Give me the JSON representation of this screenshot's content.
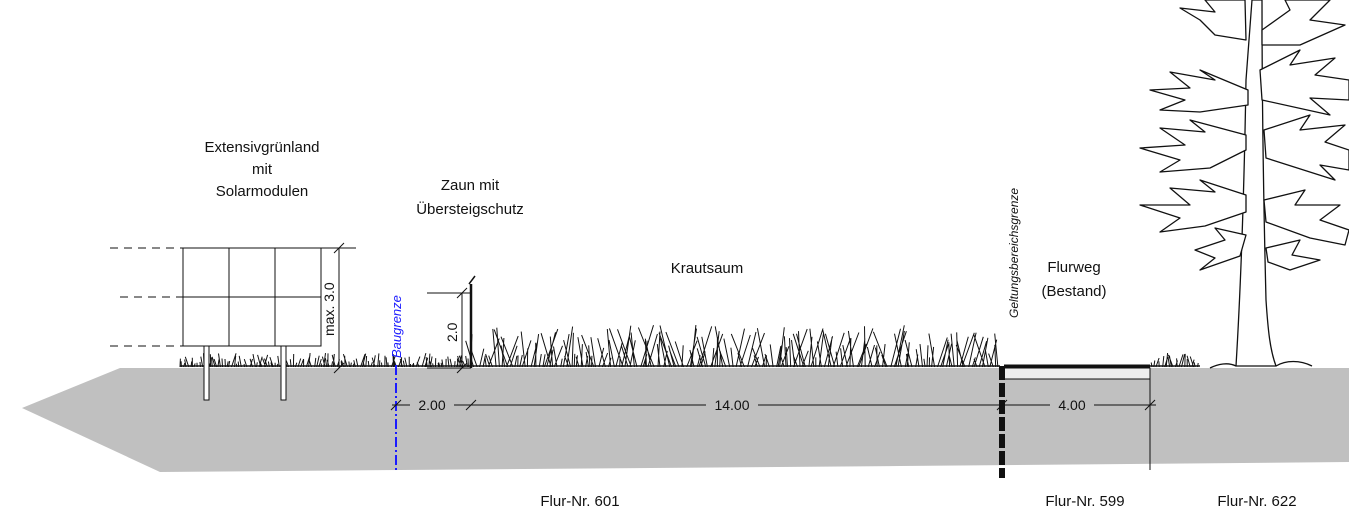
{
  "labels": {
    "grassland": [
      "Extensivgrünland",
      "mit",
      "Solarmodulen"
    ],
    "fence": [
      "Zaun mit",
      "Übersteigschutz"
    ],
    "strip": "Krautsaum",
    "path": [
      "Flurweg",
      "(Bestand)"
    ],
    "boundary": "Geltungsbereichsgrenze",
    "building_line": "Baugrenze"
  },
  "dimensions": {
    "module_height": "max. 3.0",
    "fence_height": "2.0",
    "setback": "2.00",
    "strip_width": "14.00",
    "path_width": "4.00"
  },
  "parcels": [
    "Flur-Nr. 601",
    "Flur-Nr. 599",
    "Flur-Nr. 622"
  ],
  "colors": {
    "ground": "#c0c0c0",
    "building_line": "#1a1aff",
    "line": "#111111"
  },
  "icons": [
    "solar-module-icon",
    "fence-icon",
    "grass-icon",
    "tree-icon"
  ]
}
